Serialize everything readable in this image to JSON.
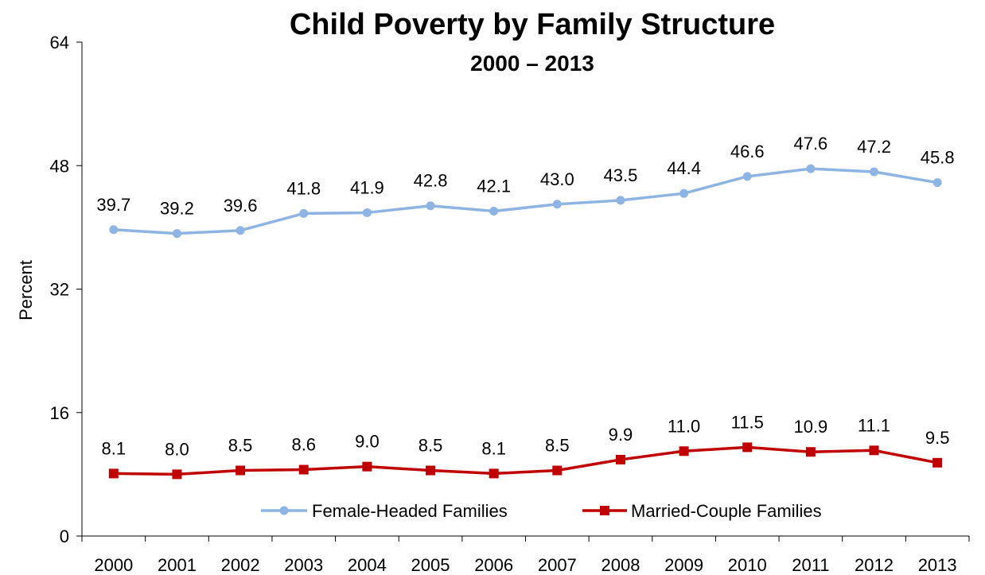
{
  "chart_data": {
    "type": "line",
    "title": "Child Poverty by Family Structure",
    "subtitle": "2000 – 2013",
    "xlabel": "",
    "ylabel": "Percent",
    "ylim": [
      0,
      64
    ],
    "yticks": [
      "0",
      "16",
      "32",
      "48",
      "64"
    ],
    "categories": [
      "2000",
      "2001",
      "2002",
      "2003",
      "2004",
      "2005",
      "2006",
      "2007",
      "2008",
      "2009",
      "2010",
      "2011",
      "2012",
      "2013"
    ],
    "series": [
      {
        "name": "Female-Headed Families",
        "color": "#8DB4E2",
        "marker": "circle",
        "values": [
          39.7,
          39.2,
          39.6,
          41.8,
          41.9,
          42.8,
          42.1,
          43.0,
          43.5,
          44.4,
          46.6,
          47.6,
          47.2,
          45.8
        ],
        "labels": [
          "39.7",
          "39.2",
          "39.6",
          "41.8",
          "41.9",
          "42.8",
          "42.1",
          "43.0",
          "43.5",
          "44.4",
          "46.6",
          "47.6",
          "47.2",
          "45.8"
        ]
      },
      {
        "name": "Married-Couple Families",
        "color": "#C00000",
        "marker": "square",
        "values": [
          8.1,
          8.0,
          8.5,
          8.6,
          9.0,
          8.5,
          8.1,
          8.5,
          9.9,
          11.0,
          11.5,
          10.9,
          11.1,
          9.5
        ],
        "labels": [
          "8.1",
          "8.0",
          "8.5",
          "8.6",
          "9.0",
          "8.5",
          "8.1",
          "8.5",
          "9.9",
          "11.0",
          "11.5",
          "10.9",
          "11.1",
          "9.5"
        ]
      }
    ],
    "grid": false,
    "legend_position": "bottom"
  }
}
